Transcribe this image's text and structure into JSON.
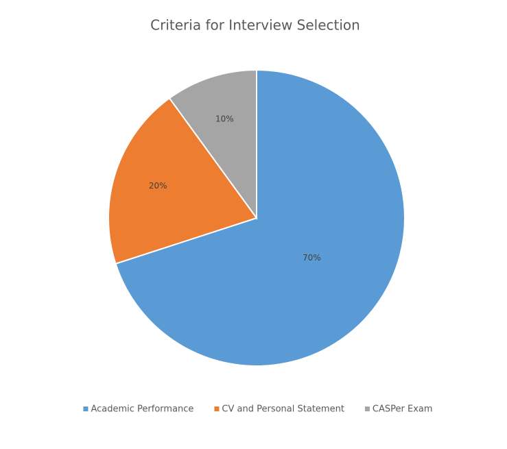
{
  "chart_data": {
    "type": "pie",
    "title": "Criteria for Interview Selection",
    "categories": [
      "Academic Performance",
      "CV and Personal Statement",
      "CASPer Exam"
    ],
    "values": [
      70,
      20,
      10
    ],
    "value_labels": [
      "70%",
      "20%",
      "10%"
    ],
    "colors": [
      "#5b9bd5",
      "#ed7d31",
      "#a5a5a5"
    ],
    "legend": "bottom"
  }
}
